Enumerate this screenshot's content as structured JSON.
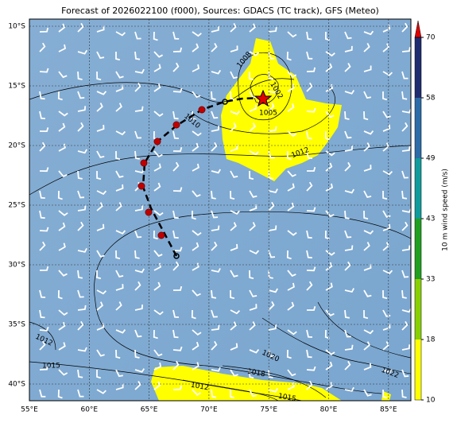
{
  "title": "Forecast of 2026022100 (f000), Sources: GDACS (TC track), GFS (Meteo)",
  "lat_labels": [
    "10°S",
    "15°S",
    "20°S",
    "25°S",
    "30°S",
    "35°S",
    "40°S"
  ],
  "lon_labels": [
    "55°E",
    "60°E",
    "65°E",
    "70°E",
    "75°E",
    "80°E",
    "85°E"
  ],
  "colorbar": {
    "label": "10 m wind speed (m/s)",
    "ticks": [
      10,
      18,
      33,
      43,
      49,
      58,
      70
    ]
  },
  "contour_labels": [
    "1008",
    "1002",
    "1005",
    "1010",
    "1012",
    "1012",
    "1015",
    "1020",
    "1018",
    "1012",
    "1015",
    "1022"
  ]
}
